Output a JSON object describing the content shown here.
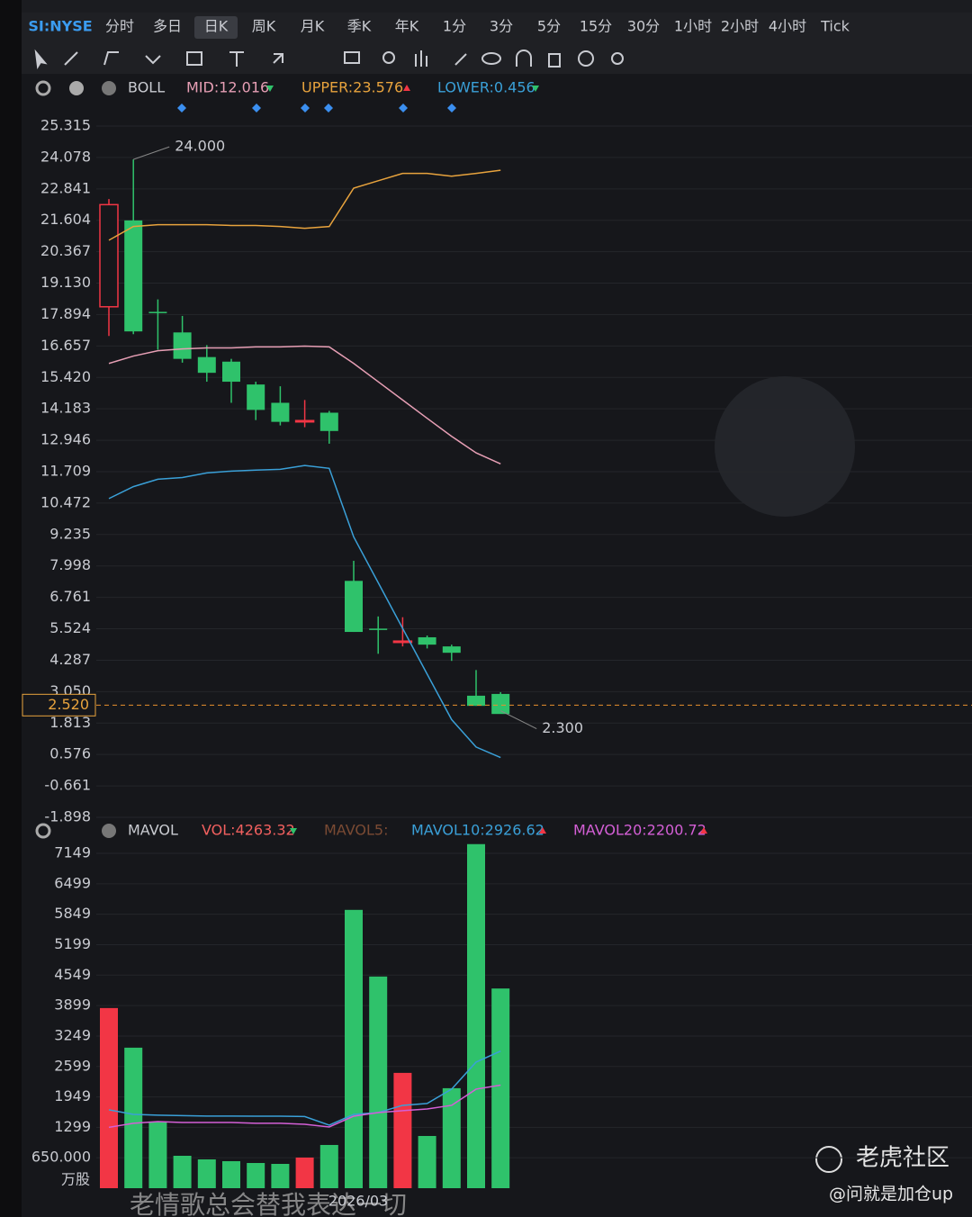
{
  "symbol": "SI:NYSE",
  "tabs": [
    "分时",
    "多日",
    "日K",
    "周K",
    "月K",
    "季K",
    "年K",
    "1分",
    "3分",
    "5分",
    "15分",
    "30分",
    "1小时",
    "2小时",
    "4小时",
    "Tick"
  ],
  "selected_tab": 2,
  "indicator_names": [
    "BOLL",
    "MAVOL"
  ],
  "watermark": "老虎社区",
  "author": "@问就是加仓up",
  "caption": "老情歌总会替我表达一切",
  "chart_data": [
    {
      "type": "candlestick",
      "ylim": [
        -1.898,
        25.315
      ],
      "yticks": [
        25.315,
        24.078,
        22.841,
        21.604,
        20.367,
        {
          "value": 19.13,
          "label": "19.130"
        },
        17.894,
        16.657,
        {
          "value": 15.42,
          "label": "15.420"
        },
        14.183,
        12.946,
        11.709,
        10.472,
        9.235,
        7.998,
        6.761,
        5.524,
        4.287,
        {
          "value": 3.05,
          "label": "3.050"
        },
        1.813,
        0.576,
        -0.661,
        -1.898
      ],
      "open": [
        18.2,
        21.6,
        18.0,
        17.19,
        16.22,
        16.04,
        15.14,
        14.42,
        13.68,
        14.03,
        7.41,
        5.53,
        5.0,
        5.19,
        4.83,
        2.89,
        2.96
      ],
      "high": [
        22.44,
        24.0,
        18.49,
        17.84,
        16.69,
        16.15,
        15.25,
        15.07,
        14.53,
        14.1,
        8.2,
        6.01,
        5.98,
        5.26,
        4.9,
        3.9,
        3.03
      ],
      "low": [
        17.05,
        17.12,
        16.51,
        16.0,
        15.25,
        14.42,
        13.74,
        13.53,
        13.46,
        12.81,
        5.4,
        4.54,
        4.83,
        4.75,
        4.26,
        2.49,
        2.3
      ],
      "close": [
        22.22,
        17.23,
        17.95,
        16.15,
        15.6,
        15.25,
        14.14,
        13.67,
        13.72,
        13.31,
        5.4,
        5.49,
        5.04,
        4.9,
        4.58,
        2.49,
        2.17
      ],
      "up_color": "#f23645",
      "down_color": "#2fc26b",
      "series": [
        {
          "name": "UPPER:23.576",
          "color": "#e8a33d",
          "values": [
            20.82,
            21.36,
            21.43,
            21.43,
            21.43,
            21.4,
            21.4,
            21.36,
            21.29,
            21.36,
            22.87,
            23.16,
            23.45,
            23.45,
            23.34,
            23.45,
            23.576
          ]
        },
        {
          "name": "MID:12.016",
          "color": "#e79fb5",
          "values": [
            15.97,
            16.26,
            16.47,
            16.54,
            16.58,
            16.58,
            16.62,
            16.62,
            16.65,
            16.62,
            15.97,
            15.25,
            14.53,
            13.81,
            13.1,
            12.45,
            12.016
          ]
        },
        {
          "name": "LOWER:0.456",
          "color": "#3aa0d8",
          "values": [
            10.65,
            11.12,
            11.41,
            11.48,
            11.66,
            11.73,
            11.77,
            11.8,
            11.95,
            11.84,
            9.14,
            7.34,
            5.54,
            3.74,
            1.95,
            0.87,
            0.456
          ]
        }
      ],
      "annotations": [
        {
          "index": 1,
          "value": 24,
          "label": "24.000"
        },
        {
          "index": 16,
          "value": 2.3,
          "label": "2.300"
        }
      ],
      "last_price": {
        "value": 2.52,
        "label": "2.520"
      }
    },
    {
      "type": "bar",
      "ylim": [
        0,
        7149
      ],
      "yticks": [
        7149,
        6499,
        5849,
        5199,
        4549,
        3899,
        3249,
        2599,
        1949,
        1299,
        {
          "value": 650,
          "label": "650.000"
        }
      ],
      "unit": "万股",
      "categories": [
        null,
        null,
        null,
        null,
        null,
        null,
        null,
        null,
        null,
        null,
        "2026/03",
        null,
        null,
        null,
        null,
        null,
        null
      ],
      "values": [
        3846,
        3000,
        1423,
        692,
        615,
        577,
        538,
        519,
        654,
        923,
        5942,
        4519,
        2462,
        1115,
        2135,
        7346,
        4263.32
      ],
      "bar_colors": [
        "#f23645",
        "#2fc26b",
        "#2fc26b",
        "#2fc26b",
        "#2fc26b",
        "#2fc26b",
        "#2fc26b",
        "#2fc26b",
        "#f23645",
        "#2fc26b",
        "#2fc26b",
        "#2fc26b",
        "#f23645",
        "#2fc26b",
        "#2fc26b",
        "#2fc26b",
        "#2fc26b"
      ],
      "legend": [
        {
          "name": "VOL:4263.32",
          "color": "#f2605f"
        },
        {
          "name": "MAVOL5:",
          "color": "#7a4a33"
        }
      ],
      "series": [
        {
          "name": "MAVOL10:2926.62",
          "color": "#3aa0d8",
          "values": [
            1673,
            1577,
            1560,
            1550,
            1540,
            1540,
            1538,
            1538,
            1530,
            1346,
            1577,
            1615,
            1769,
            1808,
            2115,
            2692,
            2926.62
          ]
        },
        {
          "name": "MAVOL20:2200.72",
          "color": "#d45fd6",
          "values": [
            1300,
            1385,
            1423,
            1404,
            1404,
            1404,
            1385,
            1385,
            1365,
            1308,
            1538,
            1615,
            1654,
            1692,
            1769,
            2115,
            2200.72
          ]
        }
      ]
    }
  ]
}
